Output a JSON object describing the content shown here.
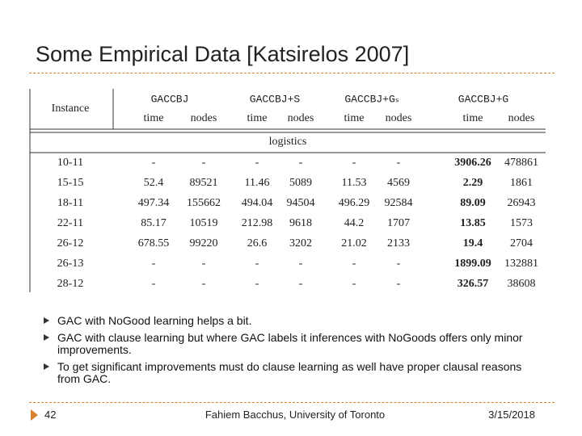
{
  "title": "Some Empirical Data [Katsirelos 2007]",
  "table": {
    "instance_header": "Instance",
    "groups": [
      "GACCBJ",
      "GACCBJ+S",
      "GACCBJ+Gₛ",
      "GACCBJ+G"
    ],
    "subheaders": [
      "time",
      "nodes",
      "time",
      "nodes",
      "time",
      "nodes",
      "time",
      "nodes"
    ],
    "section": "logistics",
    "rows": [
      [
        "10-11",
        "-",
        "-",
        "-",
        "-",
        "-",
        "-",
        "3906.26",
        "478861"
      ],
      [
        "15-15",
        "52.4",
        "89521",
        "11.46",
        "5089",
        "11.53",
        "4569",
        "2.29",
        "1861"
      ],
      [
        "18-11",
        "497.34",
        "155662",
        "494.04",
        "94504",
        "496.29",
        "92584",
        "89.09",
        "26943"
      ],
      [
        "22-11",
        "85.17",
        "10519",
        "212.98",
        "9618",
        "44.2",
        "1707",
        "13.85",
        "1573"
      ],
      [
        "26-12",
        "678.55",
        "99220",
        "26.6",
        "3202",
        "21.02",
        "2133",
        "19.4",
        "2704"
      ],
      [
        "26-13",
        "-",
        "-",
        "-",
        "-",
        "-",
        "-",
        "1899.09",
        "132881"
      ],
      [
        "28-12",
        "-",
        "-",
        "-",
        "-",
        "-",
        "-",
        "326.57",
        "38608"
      ]
    ]
  },
  "bullets": [
    "GAC with NoGood learning helps a bit.",
    "GAC with clause learning but where GAC labels it inferences with NoGoods offers only minor improvements.",
    "To get significant improvements must do clause learning as well have proper clausal reasons from GAC."
  ],
  "footer": {
    "page": "42",
    "author": "Fahiem Bacchus, University of Toronto",
    "date": "3/15/2018"
  }
}
